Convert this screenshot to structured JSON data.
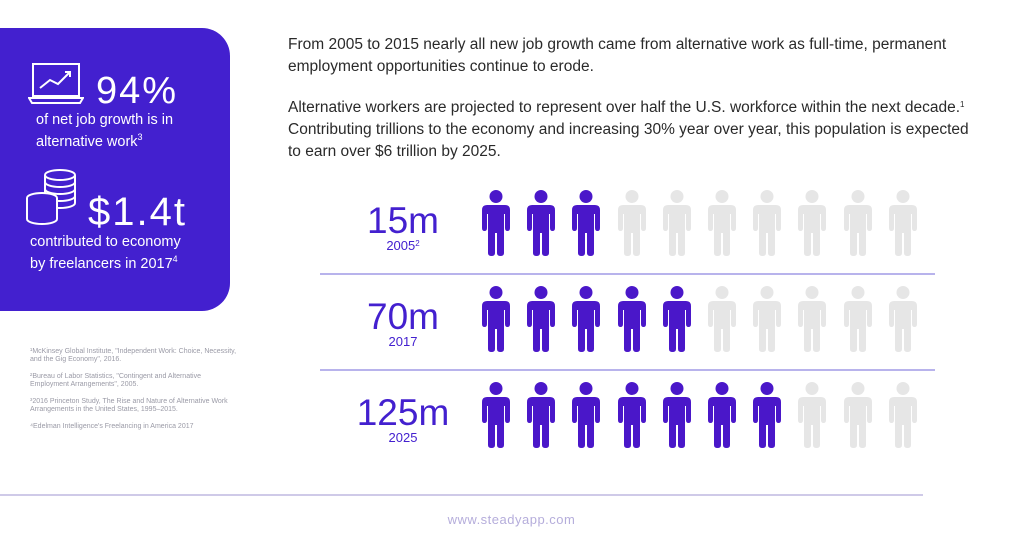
{
  "stats": {
    "growth": {
      "value": "94%",
      "description": "of net job growth is in",
      "description_line2": "alternative work",
      "footnote_ref": "3",
      "icon": "laptop-chart-icon"
    },
    "economy": {
      "value": "$1.4t",
      "description": "contributed to economy",
      "description_line2": "by freelancers in 2017",
      "footnote_ref": "4",
      "icon": "coins-stack-icon"
    }
  },
  "footnotes": [
    "¹McKinsey Global Institute, \"Independent Work: Choice, Necessity, and the Gig Economy\", 2016.",
    "²Bureau of Labor Statistics, \"Contingent and Alternative Employment Arrangements\", 2005.",
    "³2016 Princeton Study, The Rise and Nature of Alternative Work Arrangements in the United States, 1995–2015.",
    "⁴Edelman Intelligence's Freelancing in America 2017"
  ],
  "intro": {
    "paragraph1": "From 2005 to 2015 nearly all new job growth came from alternative work as full-time, permanent employment opportunities continue to erode.",
    "paragraph2_part1": "Alternative workers are projected to represent over half the U.S. workforce within the next decade.",
    "paragraph2_ref": "1",
    "paragraph2_part2": " Contributing trillions to the economy and increasing 30% year over year, this population is expected to earn over $6 trillion by 2025."
  },
  "rows": [
    {
      "value": "15m",
      "year": "2005",
      "year_ref": "2",
      "filled": 3,
      "total": 10
    },
    {
      "value": "70m",
      "year": "2017",
      "year_ref": "",
      "filled": 5,
      "total": 10
    },
    {
      "value": "125m",
      "year": "2025",
      "year_ref": "",
      "filled": 7,
      "total": 10
    }
  ],
  "colors": {
    "accent": "#4320cf",
    "person_filled": "#4a17c9",
    "person_empty": "#e6e6e6",
    "divider": "#b8b3ec"
  },
  "footer": {
    "url": "www.steadyapp.com"
  }
}
